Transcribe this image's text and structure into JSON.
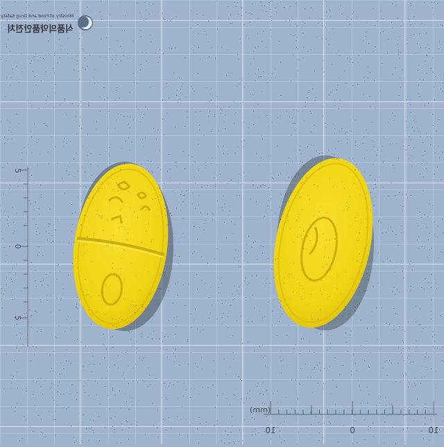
{
  "image": {
    "subject": "two yellow oval tablets (front and back) on blue grid background",
    "colors": {
      "background": "#9fb4cc",
      "grid": "#c7d6e6",
      "tablet": "#f0d414",
      "tablet_shadow": "#c9b10f",
      "text": "#334455"
    }
  },
  "watermark": {
    "org_en": "Ministry of Food and Drug Safety",
    "org_ko": "식품의약품안전처"
  },
  "left_scale": {
    "labels": [
      "5",
      "0",
      "5"
    ]
  },
  "bottom_scale": {
    "unit": "(mm)",
    "labels": [
      "10",
      "0",
      "10"
    ]
  },
  "tablets": [
    {
      "side": "front",
      "imprint": "scored with embossed markings"
    },
    {
      "side": "back",
      "imprint": "embossed logo"
    }
  ]
}
